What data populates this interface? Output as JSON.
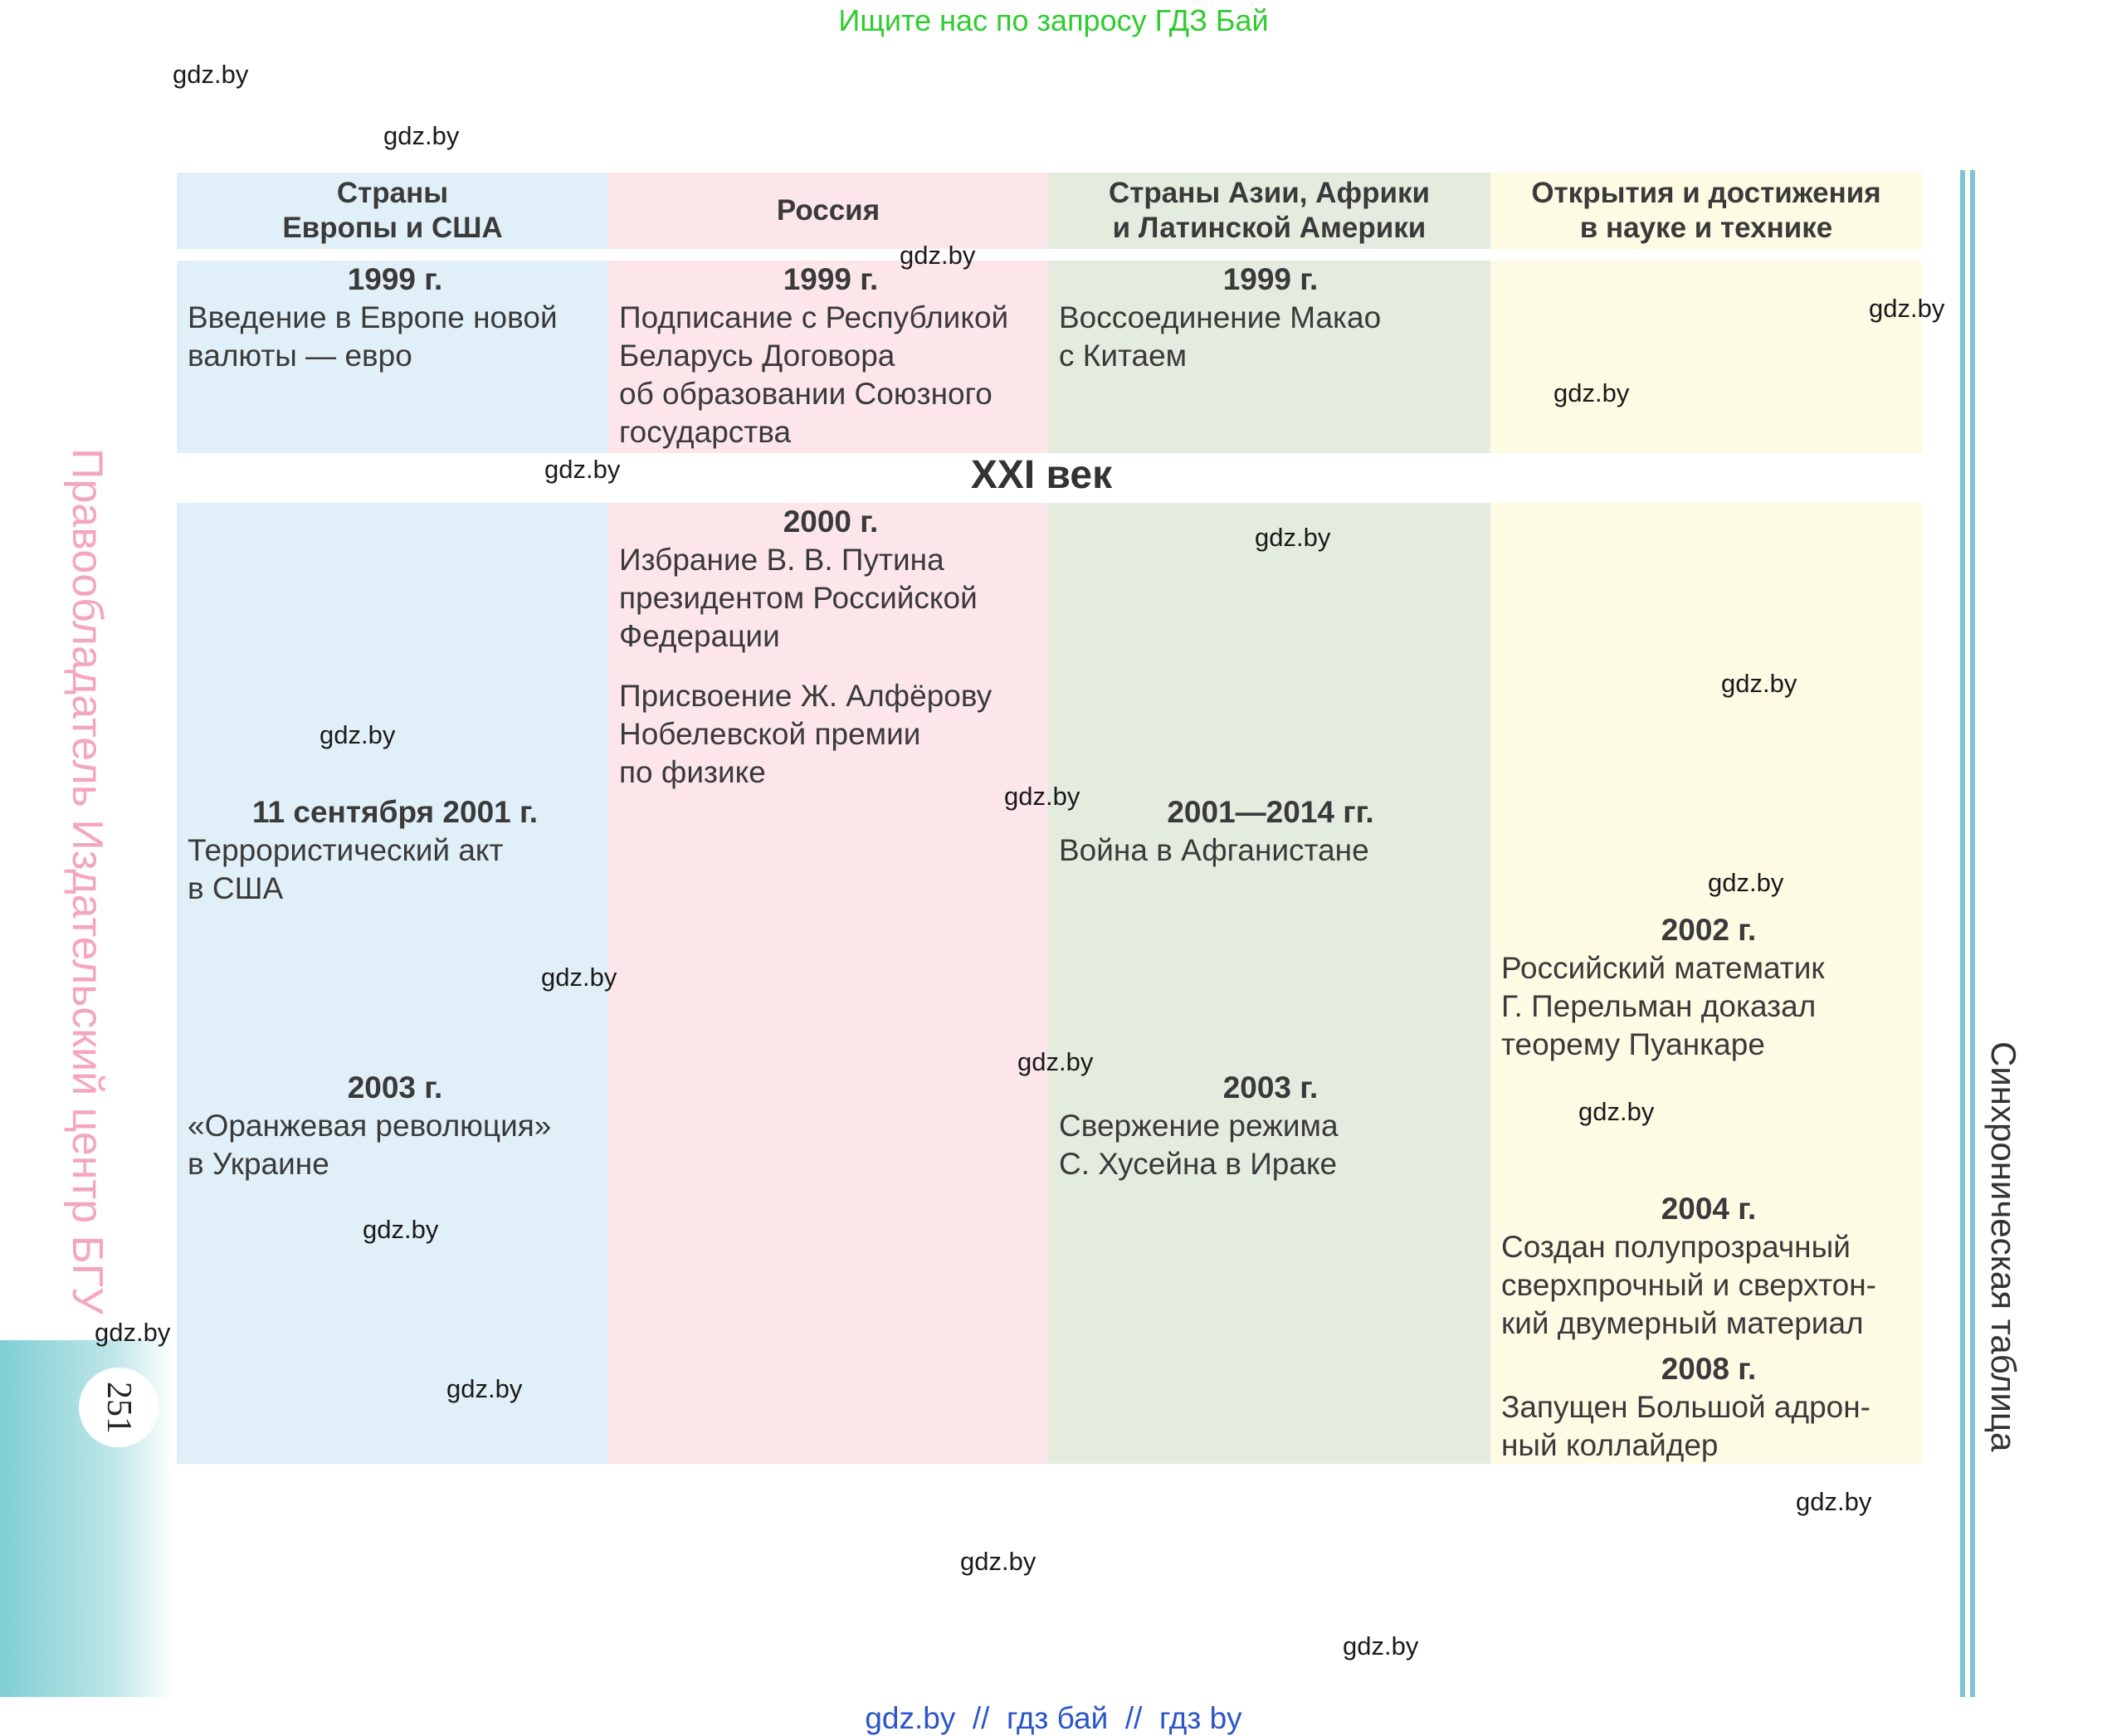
{
  "top_banner": "Ищите нас по запросу ГДЗ Бай",
  "watermark": "gdz.by",
  "headers": [
    "Страны\nЕвропы и США",
    "Россия",
    "Страны Азии, Африки\nи Латинской Америки",
    "Открытия и достижения\nв науке и технике"
  ],
  "century_label": "XXI век",
  "row1": {
    "europe": {
      "year": "1999 г.",
      "text": "Введение в Европе новой\nвалюты — евро"
    },
    "russia": {
      "year": "1999 г.",
      "text": "Подписание с Республикой\nБеларусь Договора\nоб образовании Союзного\nгосударства"
    },
    "asia": {
      "year": "1999 г.",
      "text": "Воссоединение Макао\nс Китаем"
    }
  },
  "row2": {
    "russia_1": {
      "year": "2000 г.",
      "text": "Избрание В. В. Путина\nпрезидентом Российской\nФедерации"
    },
    "russia_2": {
      "text": "Присвоение Ж. Алфёрову\nНобелевской премии\nпо физике"
    },
    "europe_1": {
      "year": "11 сентября 2001 г.",
      "text": "Террористический акт\nв США"
    },
    "europe_2": {
      "year": "2003 г.",
      "text": "«Оранжевая революция»\nв Украине"
    },
    "asia_1": {
      "year": "2001—2014 гг.",
      "text": "Война в Афганистане"
    },
    "asia_2": {
      "year": "2003 г.",
      "text": "Свержение режима\nС. Хусейна в Ираке"
    },
    "science_1": {
      "year": "2002 г.",
      "text": "Российский математик\nГ. Перельман доказал\nтеорему Пуанкаре"
    },
    "science_2": {
      "year": "2004 г.",
      "text": "Создан полупрозрачный\nсверхпрочный и сверхтон-\nкий двумерный материал"
    },
    "science_3": {
      "year": "2008 г.",
      "text": "Запущен Большой адрон-\nный коллайдер"
    }
  },
  "side_left": "Правообладатель Издательский центр БГУ",
  "side_right": "Синхроническая таблица",
  "page_number": "251",
  "footer": "gdz.by  //  гдз бай  //  гдз by",
  "colors": {
    "europe": "#e1eff8",
    "russia": "#fce6ea",
    "asia": "#e4ecdf",
    "science": "#fdfbe3",
    "accent_rule": "#7cc4cf",
    "banner": "#2ecc2e",
    "footer": "#2b55c9"
  }
}
